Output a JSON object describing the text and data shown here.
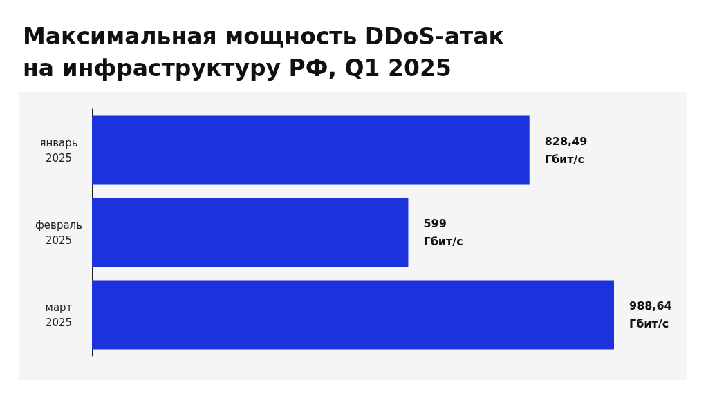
{
  "chart_data": {
    "type": "bar",
    "orientation": "horizontal",
    "title": "Максимальная мощность DDoS-атак\nна инфраструктуру РФ, Q1 2025",
    "categories": [
      "январь 2025",
      "февраль 2025",
      "март 2025"
    ],
    "values": [
      828.49,
      599,
      988.64
    ],
    "value_labels": [
      "828,49 Гбит/с",
      "599 Гбит/с",
      "988,64 Гбит/с"
    ],
    "color": "#1c32dc"
  }
}
